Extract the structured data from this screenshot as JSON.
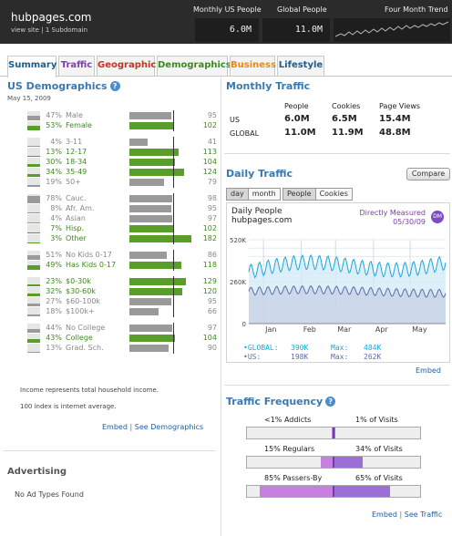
{
  "header": {
    "site_name": "hubpages.com",
    "view_site": "view site",
    "subdomain": "1 Subdomain",
    "col_monthly": "Monthly US People",
    "col_global": "Global People",
    "col_trend": "Four Month Trend",
    "monthly_value": "6.0M",
    "global_value": "11.0M",
    "trend_icon": "sparkline-icon"
  },
  "tabs": [
    {
      "label": "Summary",
      "color": "#1d5c8e",
      "active": true
    },
    {
      "label": "Traffic",
      "color": "#7b3fb0"
    },
    {
      "label": "Geographic",
      "color": "#c8321e"
    },
    {
      "label": "Demographics",
      "color": "#3d8a1c"
    },
    {
      "label": "Business",
      "color": "#f08a00"
    },
    {
      "label": "Lifestyle",
      "color": "#1d5c8e"
    }
  ],
  "us_demographics": {
    "title": "US Demographics",
    "date": "May 15, 2009",
    "rows": [
      {
        "pct": "47%",
        "label": "Male",
        "index": "95",
        "share": 0.47,
        "index_value": 95,
        "tone": "gray"
      },
      {
        "pct": "53%",
        "label": "Female",
        "index": "102",
        "share": 0.53,
        "index_value": 102,
        "tone": "green"
      },
      {
        "pct": "4%",
        "label": "3-11",
        "index": "41",
        "share": 0.04,
        "index_value": 41,
        "tone": "gray"
      },
      {
        "pct": "13%",
        "label": "12-17",
        "index": "113",
        "share": 0.13,
        "index_value": 113,
        "tone": "green"
      },
      {
        "pct": "30%",
        "label": "18-34",
        "index": "104",
        "share": 0.3,
        "index_value": 104,
        "tone": "green"
      },
      {
        "pct": "34%",
        "label": "35-49",
        "index": "124",
        "share": 0.34,
        "index_value": 124,
        "tone": "green"
      },
      {
        "pct": "19%",
        "label": "50+",
        "index": "79",
        "share": 0.19,
        "index_value": 79,
        "tone": "gray"
      },
      {
        "pct": "78%",
        "label": "Cauc.",
        "index": "98",
        "share": 0.78,
        "index_value": 98,
        "tone": "gray"
      },
      {
        "pct": "8%",
        "label": "Afr. Am.",
        "index": "95",
        "share": 0.08,
        "index_value": 95,
        "tone": "gray"
      },
      {
        "pct": "4%",
        "label": "Asian",
        "index": "97",
        "share": 0.04,
        "index_value": 97,
        "tone": "gray"
      },
      {
        "pct": "7%",
        "label": "Hisp.",
        "index": "102",
        "share": 0.07,
        "index_value": 102,
        "tone": "green"
      },
      {
        "pct": "3%",
        "label": "Other",
        "index": "182",
        "share": 0.03,
        "index_value": 182,
        "tone": "green"
      },
      {
        "pct": "51%",
        "label": "No Kids 0-17",
        "index": "86",
        "share": 0.51,
        "index_value": 86,
        "tone": "gray"
      },
      {
        "pct": "49%",
        "label": "Has Kids 0-17",
        "index": "118",
        "share": 0.49,
        "index_value": 118,
        "tone": "green"
      },
      {
        "pct": "23%",
        "label": "$0-30k",
        "index": "129",
        "share": 0.23,
        "index_value": 129,
        "tone": "green"
      },
      {
        "pct": "32%",
        "label": "$30-60k",
        "index": "120",
        "share": 0.32,
        "index_value": 120,
        "tone": "green"
      },
      {
        "pct": "27%",
        "label": "$60-100k",
        "index": "95",
        "share": 0.27,
        "index_value": 95,
        "tone": "gray"
      },
      {
        "pct": "18%",
        "label": "$100k+",
        "index": "66",
        "share": 0.18,
        "index_value": 66,
        "tone": "gray"
      },
      {
        "pct": "44%",
        "label": "No College",
        "index": "97",
        "share": 0.44,
        "index_value": 97,
        "tone": "gray"
      },
      {
        "pct": "43%",
        "label": "College",
        "index": "104",
        "share": 0.43,
        "index_value": 104,
        "tone": "green"
      },
      {
        "pct": "13%",
        "label": "Grad. Sch.",
        "index": "90",
        "share": 0.13,
        "index_value": 90,
        "tone": "gray"
      }
    ],
    "note_income": "Income represents total household income.",
    "note_index": "100 index is internet average.",
    "embed": "Embed",
    "sep": "|",
    "see_more": "See Demographics"
  },
  "advertising": {
    "title": "Advertising",
    "text": "No Ad Types Found"
  },
  "monthly_traffic": {
    "title": "Monthly Traffic",
    "headers": [
      "People",
      "Cookies",
      "Page Views"
    ],
    "rows": [
      {
        "region": "US",
        "people": "6.0M",
        "cookies": "6.5M",
        "page_views": "15.4M"
      },
      {
        "region": "GLOBAL",
        "people": "11.0M",
        "cookies": "11.9M",
        "page_views": "48.8M"
      }
    ]
  },
  "daily_traffic": {
    "title": "Daily Traffic",
    "compare": "Compare",
    "granularity": [
      "day",
      "month"
    ],
    "metric": [
      "People",
      "Cookies"
    ],
    "chart_title": "Daily People",
    "chart_subtitle": "hubpages.com",
    "measured": "Directly Measured",
    "measured_date": "05/30/09",
    "dm_icon_text": "DM",
    "legend": [
      {
        "label": "•GLOBAL:",
        "value": "390K",
        "max_label": "Max:",
        "max": "484K",
        "color": "#1aa7d8"
      },
      {
        "label": "•US:",
        "value": "198K",
        "max_label": "Max:",
        "max": "262K",
        "color": "#5b6fa8"
      }
    ],
    "embed": "Embed"
  },
  "chart_data": {
    "type": "line",
    "title": "Daily People",
    "subtitle": "hubpages.com",
    "x_ticks": [
      "Jan",
      "Feb",
      "Mar",
      "Apr",
      "May"
    ],
    "y_ticks": [
      "520K",
      "260K",
      "0"
    ],
    "ylim": [
      0,
      520000
    ],
    "x_range": [
      "2008-12-20",
      "2009-05-30"
    ],
    "series": [
      {
        "name": "GLOBAL",
        "color": "#1aa7d8",
        "start": 320000,
        "end": 390000,
        "max": 484000,
        "weekly_swing": 45000
      },
      {
        "name": "US",
        "color": "#5b6fa8",
        "start": 200000,
        "end": 198000,
        "max": 262000,
        "weekly_swing": 25000
      }
    ],
    "grid": true
  },
  "traffic_frequency": {
    "title": "Traffic Frequency",
    "rows": [
      {
        "left_label": "<1% Addicts",
        "right_label": "1% of Visits",
        "people_share": 0.01,
        "visit_share": 0.01
      },
      {
        "left_label": "15% Regulars",
        "right_label": "34% of Visits",
        "people_share": 0.15,
        "visit_share": 0.34
      },
      {
        "left_label": "85% Passers-By",
        "right_label": "65% of Visits",
        "people_share": 0.85,
        "visit_share": 0.65
      }
    ],
    "embed": "Embed",
    "sep": "|",
    "see_more": "See Traffic"
  }
}
